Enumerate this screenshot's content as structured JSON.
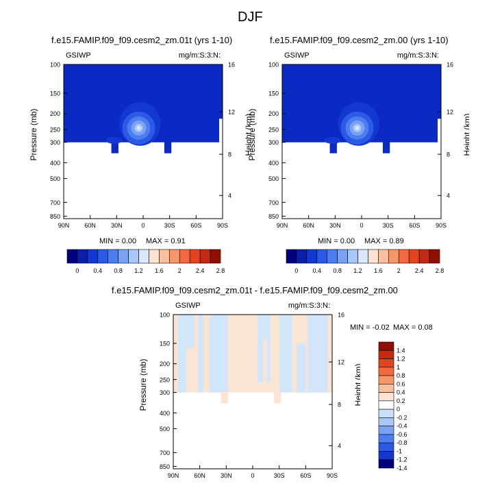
{
  "page_title": "DJF",
  "chart_data": [
    {
      "type": "heatmap",
      "title": "f.e15.FAMIP.f09_f09.cesm2_zm.01t (yrs 1-10)",
      "left_label": "GSIWP",
      "right_label": "mg/m:S:3:N:",
      "ylabel": "Pressure (mb)",
      "ylabel_right": "Height (km)",
      "x_tick_labels": [
        "90N",
        "60N",
        "30N",
        "0",
        "30S",
        "60S",
        "90S"
      ],
      "y_tick_labels": [
        "100",
        "150",
        "200",
        "250",
        "300",
        "400",
        "500",
        "700",
        "850"
      ],
      "height_tick_labels": [
        "16",
        "12",
        "8",
        "4"
      ],
      "min_label": "MIN =  0.00",
      "max_label": "MAX =  0.91",
      "min": 0.0,
      "max": 0.91,
      "colorbar_labels": [
        "0",
        "0.4",
        "0.8",
        "1.2",
        "1.6",
        "2",
        "2.4",
        "2.8"
      ],
      "peak_location": {
        "lat": 5,
        "pressure_mb": 250
      }
    },
    {
      "type": "heatmap",
      "title": "f.e15.FAMIP.f09_f09.cesm2_zm.00 (yrs 1-10)",
      "left_label": "GSIWP",
      "right_label": "mg/m:S:3:N:",
      "ylabel": "Pressure (mb)",
      "ylabel_right": "Height (km)",
      "x_tick_labels": [
        "90N",
        "60N",
        "30N",
        "0",
        "30S",
        "60S",
        "90S"
      ],
      "y_tick_labels": [
        "100",
        "150",
        "200",
        "250",
        "300",
        "400",
        "500",
        "700",
        "850"
      ],
      "height_tick_labels": [
        "16",
        "12",
        "8",
        "4"
      ],
      "min_label": "MIN =  0.00",
      "max_label": "MAX =  0.89",
      "min": 0.0,
      "max": 0.89,
      "colorbar_labels": [
        "0",
        "0.4",
        "0.8",
        "1.2",
        "1.6",
        "2",
        "2.4",
        "2.8"
      ],
      "peak_location": {
        "lat": 5,
        "pressure_mb": 250
      }
    },
    {
      "type": "heatmap",
      "title": "f.e15.FAMIP.f09_f09.cesm2_zm.01t - f.e15.FAMIP.f09_f09.cesm2_zm.00",
      "left_label": "GSIWP",
      "right_label": "mg/m:S:3:N:",
      "ylabel": "Pressure (mb)",
      "ylabel_right": "Height (km)",
      "x_tick_labels": [
        "90N",
        "60N",
        "30N",
        "0",
        "30S",
        "60S",
        "90S"
      ],
      "y_tick_labels": [
        "100",
        "150",
        "200",
        "250",
        "300",
        "400",
        "500",
        "700",
        "850"
      ],
      "height_tick_labels": [
        "16",
        "12",
        "8",
        "4"
      ],
      "min_label": "MIN = -0.02",
      "max_label": "MAX =  0.08",
      "min": -0.02,
      "max": 0.08,
      "colorbar_labels": [
        "1.4",
        "1.2",
        "1",
        "0.8",
        "0.6",
        "0.4",
        "0.2",
        "0",
        "-0.2",
        "-0.4",
        "-0.6",
        "-0.8",
        "-1",
        "-1.2",
        "-1.4"
      ]
    }
  ],
  "colors": {
    "seq": [
      "#00007f",
      "#0a1ea8",
      "#1238cf",
      "#2a5ae6",
      "#4c7ef0",
      "#7aa2f4",
      "#a9c6f8",
      "#dae8fb",
      "#fde3d0",
      "#fbbf9c",
      "#f7966a",
      "#f26a3e",
      "#e24420",
      "#c42a12",
      "#8f0f05"
    ],
    "diff": [
      "#8f0f05",
      "#c42a12",
      "#e24420",
      "#f26a3e",
      "#f7966a",
      "#fbbf9c",
      "#fde3d0",
      "#ffffff",
      "#cce0fa",
      "#a9c6f8",
      "#7aa2f4",
      "#4c7ef0",
      "#2a5ae6",
      "#1238cf",
      "#00007f"
    ],
    "field_base": "#0b2ac4",
    "diff_pos": "#fce4d2",
    "diff_neg": "#d2e6fb"
  }
}
